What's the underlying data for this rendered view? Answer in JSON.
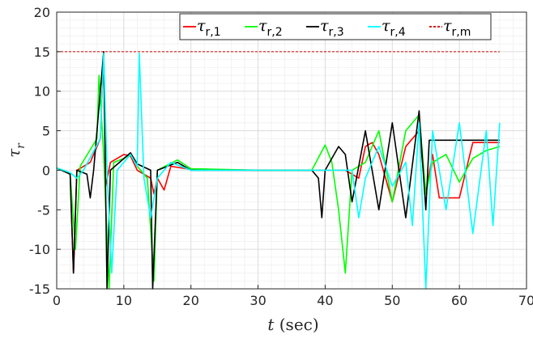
{
  "chart_data": {
    "type": "line",
    "title": "",
    "xlabel_italic": "t",
    "xlabel_rest": " (sec)",
    "ylabel_main": "τ",
    "ylabel_sub": "r",
    "xlim": [
      0,
      70
    ],
    "ylim": [
      -15,
      20
    ],
    "xticks": [
      0,
      10,
      20,
      30,
      40,
      50,
      60,
      70
    ],
    "yticks": [
      -15,
      -10,
      -5,
      0,
      5,
      10,
      15,
      20
    ],
    "xtick_labels": [
      "0",
      "10",
      "20",
      "30",
      "40",
      "50",
      "60",
      "70"
    ],
    "ytick_labels": [
      "-15",
      "-10",
      "-5",
      "0",
      "5",
      "10",
      "15",
      "20"
    ],
    "grid": true,
    "minor_grid": true,
    "legend_position": "top, horizontal",
    "series": [
      {
        "name": "τ",
        "sub": "r,1",
        "color": "#ff0000",
        "style": "solid"
      },
      {
        "name": "τ",
        "sub": "r,2",
        "color": "#00ff00",
        "style": "solid"
      },
      {
        "name": "τ",
        "sub": "r,3",
        "color": "#000000",
        "style": "solid"
      },
      {
        "name": "τ",
        "sub": "r,4",
        "color": "#00ffff",
        "style": "solid"
      },
      {
        "name": "τ",
        "sub": "r,m",
        "color": "#cc0000",
        "style": "dashed"
      }
    ],
    "limit_values": [
      15,
      -15
    ],
    "limit_x_range": [
      0,
      66
    ],
    "approx_points": {
      "r,1": [
        [
          0,
          0.3
        ],
        [
          2,
          -0.5
        ],
        [
          2.5,
          -13
        ],
        [
          3,
          0
        ],
        [
          5,
          1
        ],
        [
          6.5,
          4
        ],
        [
          7,
          15
        ],
        [
          7.3,
          -2
        ],
        [
          8,
          1
        ],
        [
          10,
          2
        ],
        [
          11,
          1.8
        ],
        [
          12,
          0
        ],
        [
          14,
          -1
        ],
        [
          14.5,
          -3
        ],
        [
          15,
          -1
        ],
        [
          16,
          -2.5
        ],
        [
          17,
          0.5
        ],
        [
          20,
          0.1
        ],
        [
          30,
          0
        ],
        [
          40,
          0
        ],
        [
          43,
          0
        ],
        [
          45,
          -1
        ],
        [
          46,
          3
        ],
        [
          47,
          3.5
        ],
        [
          48,
          2
        ],
        [
          50,
          -4
        ],
        [
          52,
          3
        ],
        [
          54,
          5
        ],
        [
          55,
          -3
        ],
        [
          56,
          2
        ],
        [
          57,
          -3.5
        ],
        [
          60,
          -3.5
        ],
        [
          62,
          3.5
        ],
        [
          66,
          3.5
        ]
      ],
      "r,2": [
        [
          0,
          0.3
        ],
        [
          2,
          -0.5
        ],
        [
          2.8,
          -10
        ],
        [
          3.5,
          0.5
        ],
        [
          6,
          4
        ],
        [
          6.3,
          12
        ],
        [
          7,
          2
        ],
        [
          7.8,
          -15
        ],
        [
          8.5,
          1
        ],
        [
          10,
          1.5
        ],
        [
          11,
          2
        ],
        [
          12,
          0.5
        ],
        [
          13.5,
          -1
        ],
        [
          14.5,
          -14
        ],
        [
          15,
          0
        ],
        [
          18,
          1.3
        ],
        [
          20,
          0.2
        ],
        [
          30,
          0
        ],
        [
          38,
          0
        ],
        [
          40,
          3.2
        ],
        [
          41,
          1
        ],
        [
          42,
          -5
        ],
        [
          43,
          -13
        ],
        [
          44,
          0
        ],
        [
          46,
          1
        ],
        [
          48,
          5
        ],
        [
          50,
          -4
        ],
        [
          52,
          5
        ],
        [
          54,
          7
        ],
        [
          55,
          -3
        ],
        [
          56,
          1
        ],
        [
          58,
          2
        ],
        [
          60,
          -1.5
        ],
        [
          62,
          1.5
        ],
        [
          64,
          2.5
        ],
        [
          66,
          3
        ]
      ],
      "r,3": [
        [
          0,
          0.3
        ],
        [
          2,
          -0.5
        ],
        [
          2.5,
          -13
        ],
        [
          3,
          0
        ],
        [
          4.5,
          -0.5
        ],
        [
          5,
          -3.5
        ],
        [
          5.5,
          0
        ],
        [
          7,
          15
        ],
        [
          7.5,
          -15
        ],
        [
          8,
          0
        ],
        [
          11,
          2.2
        ],
        [
          12,
          0.8
        ],
        [
          14,
          0
        ],
        [
          14.3,
          -15
        ],
        [
          15,
          0
        ],
        [
          18,
          1
        ],
        [
          20,
          0
        ],
        [
          30,
          0
        ],
        [
          38,
          0
        ],
        [
          39,
          -1
        ],
        [
          39.5,
          -6
        ],
        [
          40,
          0
        ],
        [
          42,
          3
        ],
        [
          43,
          2
        ],
        [
          44,
          -4
        ],
        [
          46,
          5
        ],
        [
          48,
          -5
        ],
        [
          50,
          6
        ],
        [
          52,
          -6
        ],
        [
          54,
          7.5
        ],
        [
          55,
          -5
        ],
        [
          55.5,
          3.8
        ],
        [
          60,
          3.8
        ],
        [
          66,
          3.8
        ]
      ],
      "r,4": [
        [
          0,
          0.3
        ],
        [
          2,
          -0.3
        ],
        [
          3,
          -1
        ],
        [
          4,
          0
        ],
        [
          6.5,
          4
        ],
        [
          7,
          14.8
        ],
        [
          7.5,
          0
        ],
        [
          8.2,
          -13
        ],
        [
          9,
          0
        ],
        [
          11,
          2
        ],
        [
          12,
          0.5
        ],
        [
          12.3,
          14.8
        ],
        [
          13,
          -1
        ],
        [
          14,
          -6
        ],
        [
          15,
          -1
        ],
        [
          17,
          1
        ],
        [
          20,
          0
        ],
        [
          30,
          0
        ],
        [
          44,
          0
        ],
        [
          45,
          -6
        ],
        [
          46,
          -1
        ],
        [
          48,
          3
        ],
        [
          50,
          -2
        ],
        [
          52,
          1
        ],
        [
          53,
          -7
        ],
        [
          54,
          6
        ],
        [
          55,
          -15
        ],
        [
          56,
          5
        ],
        [
          58,
          -5
        ],
        [
          60,
          6
        ],
        [
          62,
          -8
        ],
        [
          64,
          5
        ],
        [
          65,
          -7
        ],
        [
          66,
          6
        ]
      ]
    }
  }
}
